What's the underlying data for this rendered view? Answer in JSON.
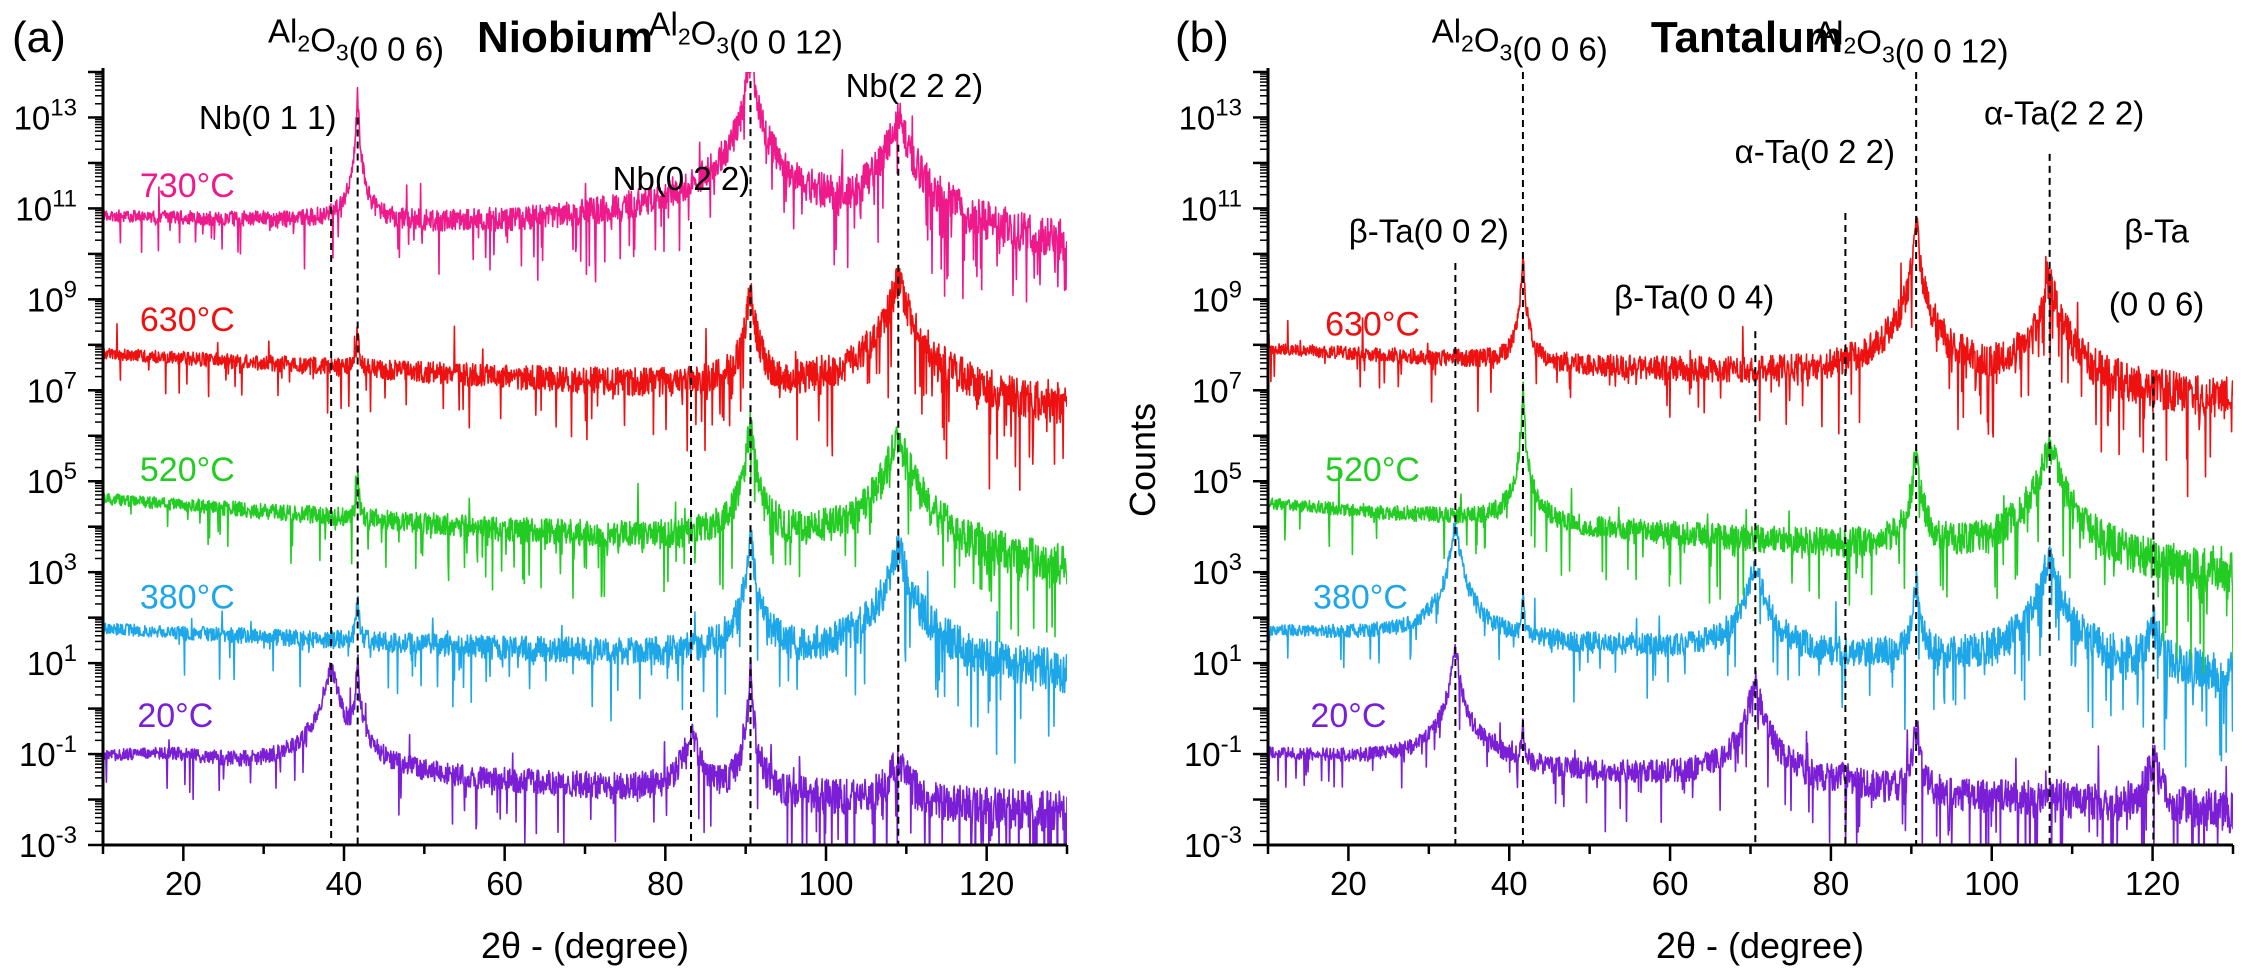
{
  "figure": {
    "panels": [
      {
        "label": "(a)",
        "title": "Niobium",
        "ylabel": ""
      },
      {
        "label": "(b)",
        "title": "Tantalum",
        "ylabel": "Counts"
      }
    ]
  },
  "chart_data": [
    {
      "type": "line",
      "title": "Niobium",
      "panel_label": "(a)",
      "xlabel": "2θ - (degree)",
      "ylabel": "",
      "y_scale": "log",
      "xlim": [
        10,
        130
      ],
      "ylim": [
        0.001,
        100000000000000
      ],
      "x_ticks": [
        20,
        40,
        60,
        80,
        100,
        120
      ],
      "y_ticks": [
        {
          "value": 0.001,
          "base": "10",
          "exp": "-3"
        },
        {
          "value": 0.1,
          "base": "10",
          "exp": "-1"
        },
        {
          "value": 10,
          "base": "10",
          "exp": "1"
        },
        {
          "value": 1000,
          "base": "10",
          "exp": "3"
        },
        {
          "value": 100000,
          "base": "10",
          "exp": "5"
        },
        {
          "value": 10000000,
          "base": "10",
          "exp": "7"
        },
        {
          "value": 1000000000,
          "base": "10",
          "exp": "9"
        },
        {
          "value": 100000000000,
          "base": "10",
          "exp": "11"
        },
        {
          "value": 10000000000000,
          "base": "10",
          "exp": "13"
        }
      ],
      "series": [
        {
          "name": "20°C",
          "color": "#7a1fd6",
          "baseline_log": -1.1,
          "start_log": -1.15,
          "end_log": -2.3,
          "peaks": [
            {
              "x": 38.4,
              "rise": 2.3,
              "w": 0.55
            },
            {
              "x": 41.7,
              "rise": 2.6,
              "w": 0.12
            },
            {
              "x": 83.2,
              "rise": 1.2,
              "w": 0.7
            },
            {
              "x": 90.6,
              "rise": 2.8,
              "w": 0.12
            },
            {
              "x": 109.0,
              "rise": 0.9,
              "w": 0.9
            }
          ],
          "bump": {
            "x": 18,
            "rise": 0.2,
            "w": 8
          }
        },
        {
          "name": "380°C",
          "color": "#1ea7e8",
          "baseline_log": 1.7,
          "start_log": 1.75,
          "end_log": 0.65,
          "peaks": [
            {
              "x": 41.7,
              "rise": 1.0,
              "w": 0.12
            },
            {
              "x": 90.6,
              "rise": 2.8,
              "w": 0.22
            },
            {
              "x": 109.0,
              "rise": 2.6,
              "w": 0.7
            }
          ]
        },
        {
          "name": "520°C",
          "color": "#22cc22",
          "baseline_log": 4.6,
          "start_log": 4.6,
          "end_log": 2.9,
          "peaks": [
            {
              "x": 41.7,
              "rise": 1.0,
              "w": 0.12
            },
            {
              "x": 90.6,
              "rise": 2.8,
              "w": 0.25
            },
            {
              "x": 109.0,
              "rise": 2.8,
              "w": 0.7
            }
          ]
        },
        {
          "name": "630°C",
          "color": "#ee1111",
          "baseline_log": 7.8,
          "start_log": 7.8,
          "end_log": 6.5,
          "peaks": [
            {
              "x": 41.7,
              "rise": 0.8,
              "w": 0.15
            },
            {
              "x": 90.6,
              "rise": 2.2,
              "w": 0.3
            },
            {
              "x": 109.0,
              "rise": 2.6,
              "w": 0.75
            }
          ]
        },
        {
          "name": "730°C",
          "color": "#ee1a8c",
          "baseline_log": 10.75,
          "start_log": 10.75,
          "end_log": 9.8,
          "peaks": [
            {
              "x": 41.7,
              "rise": 3.0,
              "w": 0.1
            },
            {
              "x": 90.6,
              "rise": 4.5,
              "w": 0.2
            },
            {
              "x": 109.0,
              "rise": 3.0,
              "w": 0.75
            }
          ]
        }
      ],
      "temperature_labels": [
        {
          "text": "730°C",
          "x_data": 20.5,
          "log_y": 11.25,
          "color": "#ee1a8c"
        },
        {
          "text": "630°C",
          "x_data": 20.5,
          "log_y": 8.3,
          "color": "#ee1111"
        },
        {
          "text": "520°C",
          "x_data": 20.5,
          "log_y": 5.0,
          "color": "#22cc22"
        },
        {
          "text": "380°C",
          "x_data": 20.5,
          "log_y": 2.2,
          "color": "#1ea7e8"
        },
        {
          "text": "20°C",
          "x_data": 19.0,
          "log_y": -0.4,
          "color": "#7a1fd6"
        }
      ],
      "reference_lines": [
        {
          "x": 38.4,
          "log_top": 12.35
        },
        {
          "x": 41.7,
          "log_top": 13.0
        },
        {
          "x": 83.2,
          "log_top": 10.7
        },
        {
          "x": 90.6,
          "log_top": 13.8
        },
        {
          "x": 109.0,
          "log_top": 12.4
        }
      ],
      "annotations": [
        {
          "parts": [
            {
              "t": "Nb(0 1 1)"
            }
          ],
          "x_data": 30.5,
          "log_y": 12.75
        },
        {
          "parts": [
            {
              "t": "Al"
            },
            {
              "t": "2",
              "sub": true
            },
            {
              "t": "O"
            },
            {
              "t": "3",
              "sub": true
            },
            {
              "t": "(0 0 6)"
            }
          ],
          "x_data": 41.5,
          "log_y": 14.65
        },
        {
          "parts": [
            {
              "t": "Nb(0 2 2)"
            }
          ],
          "x_data": 82.0,
          "log_y": 11.4
        },
        {
          "parts": [
            {
              "t": "Al"
            },
            {
              "t": "2",
              "sub": true
            },
            {
              "t": "O"
            },
            {
              "t": "3",
              "sub": true
            },
            {
              "t": "(0 0 12)"
            }
          ],
          "x_data": 90.0,
          "log_y": 14.8
        },
        {
          "parts": [
            {
              "t": "Nb(2 2 2)"
            }
          ],
          "x_data": 111.0,
          "log_y": 13.45
        }
      ]
    },
    {
      "type": "line",
      "title": "Tantalum",
      "panel_label": "(b)",
      "xlabel": "2θ - (degree)",
      "ylabel": "Counts",
      "y_scale": "log",
      "xlim": [
        10,
        130
      ],
      "ylim": [
        0.001,
        100000000000000
      ],
      "x_ticks": [
        20,
        40,
        60,
        80,
        100,
        120
      ],
      "y_ticks": [
        {
          "value": 0.001,
          "base": "10",
          "exp": "-3"
        },
        {
          "value": 0.1,
          "base": "10",
          "exp": "-1"
        },
        {
          "value": 10,
          "base": "10",
          "exp": "1"
        },
        {
          "value": 1000,
          "base": "10",
          "exp": "3"
        },
        {
          "value": 100000,
          "base": "10",
          "exp": "5"
        },
        {
          "value": 10000000,
          "base": "10",
          "exp": "7"
        },
        {
          "value": 1000000000,
          "base": "10",
          "exp": "9"
        },
        {
          "value": 100000000000,
          "base": "10",
          "exp": "11"
        },
        {
          "value": 10000000000000,
          "base": "10",
          "exp": "13"
        }
      ],
      "series": [
        {
          "name": "20°C",
          "color": "#7a1fd6",
          "baseline_log": -1.2,
          "start_log": -1.0,
          "end_log": -2.3,
          "peaks": [
            {
              "x": 33.3,
              "rise": 2.5,
              "w": 0.35
            },
            {
              "x": 37.8,
              "rise": 0.3,
              "w": 1.0
            },
            {
              "x": 41.7,
              "rise": 1.0,
              "w": 0.12
            },
            {
              "x": 70.6,
              "rise": 2.2,
              "w": 0.55
            },
            {
              "x": 81.8,
              "rise": 0.3,
              "w": 0.6
            },
            {
              "x": 90.6,
              "rise": 1.6,
              "w": 0.2
            },
            {
              "x": 107.2,
              "rise": 0.4,
              "w": 0.6
            },
            {
              "x": 120.1,
              "rise": 1.0,
              "w": 0.6
            }
          ]
        },
        {
          "name": "380°C",
          "color": "#1ea7e8",
          "baseline_log": 1.2,
          "start_log": 1.7,
          "end_log": 0.7,
          "peaks": [
            {
              "x": 33.3,
              "rise": 2.5,
              "w": 0.35
            },
            {
              "x": 41.7,
              "rise": 1.0,
              "w": 0.12
            },
            {
              "x": 70.6,
              "rise": 2.0,
              "w": 0.55
            },
            {
              "x": 90.6,
              "rise": 1.8,
              "w": 0.2
            },
            {
              "x": 107.2,
              "rise": 2.4,
              "w": 0.6
            },
            {
              "x": 120.1,
              "rise": 1.0,
              "w": 0.6
            }
          ]
        },
        {
          "name": "520°C",
          "color": "#22cc22",
          "baseline_log": 4.0,
          "start_log": 4.5,
          "end_log": 2.85,
          "peaks": [
            {
              "x": 41.7,
              "rise": 3.0,
              "w": 0.1
            },
            {
              "x": 90.6,
              "rise": 2.2,
              "w": 0.25
            },
            {
              "x": 107.2,
              "rise": 2.6,
              "w": 0.65
            }
          ]
        },
        {
          "name": "630°C",
          "color": "#ee1111",
          "baseline_log": 7.0,
          "start_log": 7.9,
          "end_log": 6.7,
          "peaks": [
            {
              "x": 41.7,
              "rise": 2.4,
              "w": 0.12
            },
            {
              "x": 90.6,
              "rise": 3.6,
              "w": 0.2
            },
            {
              "x": 107.2,
              "rise": 2.4,
              "w": 0.65
            }
          ]
        }
      ],
      "temperature_labels": [
        {
          "text": "630°C",
          "x_data": 23.0,
          "log_y": 8.2,
          "color": "#ee1111"
        },
        {
          "text": "520°C",
          "x_data": 23.0,
          "log_y": 5.0,
          "color": "#22cc22"
        },
        {
          "text": "380°C",
          "x_data": 21.5,
          "log_y": 2.2,
          "color": "#1ea7e8"
        },
        {
          "text": "20°C",
          "x_data": 20.0,
          "log_y": -0.4,
          "color": "#7a1fd6"
        }
      ],
      "reference_lines": [
        {
          "x": 33.3,
          "log_top": 9.8
        },
        {
          "x": 41.7,
          "log_top": 14.0
        },
        {
          "x": 70.6,
          "log_top": 8.3
        },
        {
          "x": 81.8,
          "log_top": 10.9
        },
        {
          "x": 90.6,
          "log_top": 14.0
        },
        {
          "x": 107.2,
          "log_top": 12.2
        },
        {
          "x": 120.1,
          "log_top": 7.3
        }
      ],
      "annotations": [
        {
          "parts": [
            {
              "t": "Al"
            },
            {
              "t": "2",
              "sub": true
            },
            {
              "t": "O"
            },
            {
              "t": "3",
              "sub": true
            },
            {
              "t": "(0 0 6)"
            }
          ],
          "x_data": 41.3,
          "log_y": 14.65
        },
        {
          "parts": [
            {
              "t": "Al"
            },
            {
              "t": "2",
              "sub": true
            },
            {
              "t": "O"
            },
            {
              "t": "3",
              "sub": true
            },
            {
              "t": "(0 0 12)"
            }
          ],
          "x_data": 90.0,
          "log_y": 14.6
        },
        {
          "parts": [
            {
              "t": "α-Ta(0 2 2)"
            }
          ],
          "x_data": 78.0,
          "log_y": 12.0
        },
        {
          "parts": [
            {
              "t": "α-Ta(2 2 2)"
            }
          ],
          "x_data": 109.0,
          "log_y": 12.85
        },
        {
          "parts": [
            {
              "t": "β-Ta(0 0 2)"
            }
          ],
          "x_data": 30.0,
          "log_y": 10.25
        },
        {
          "parts": [
            {
              "t": "β-Ta(0 0 4)"
            }
          ],
          "x_data": 63.0,
          "log_y": 8.8
        },
        {
          "parts": [
            {
              "t": "β-Ta"
            }
          ],
          "x_data": 120.5,
          "log_y": 10.25
        },
        {
          "parts": [
            {
              "t": "(0 0 6)"
            }
          ],
          "x_data": 120.5,
          "log_y": 8.65
        }
      ]
    }
  ]
}
